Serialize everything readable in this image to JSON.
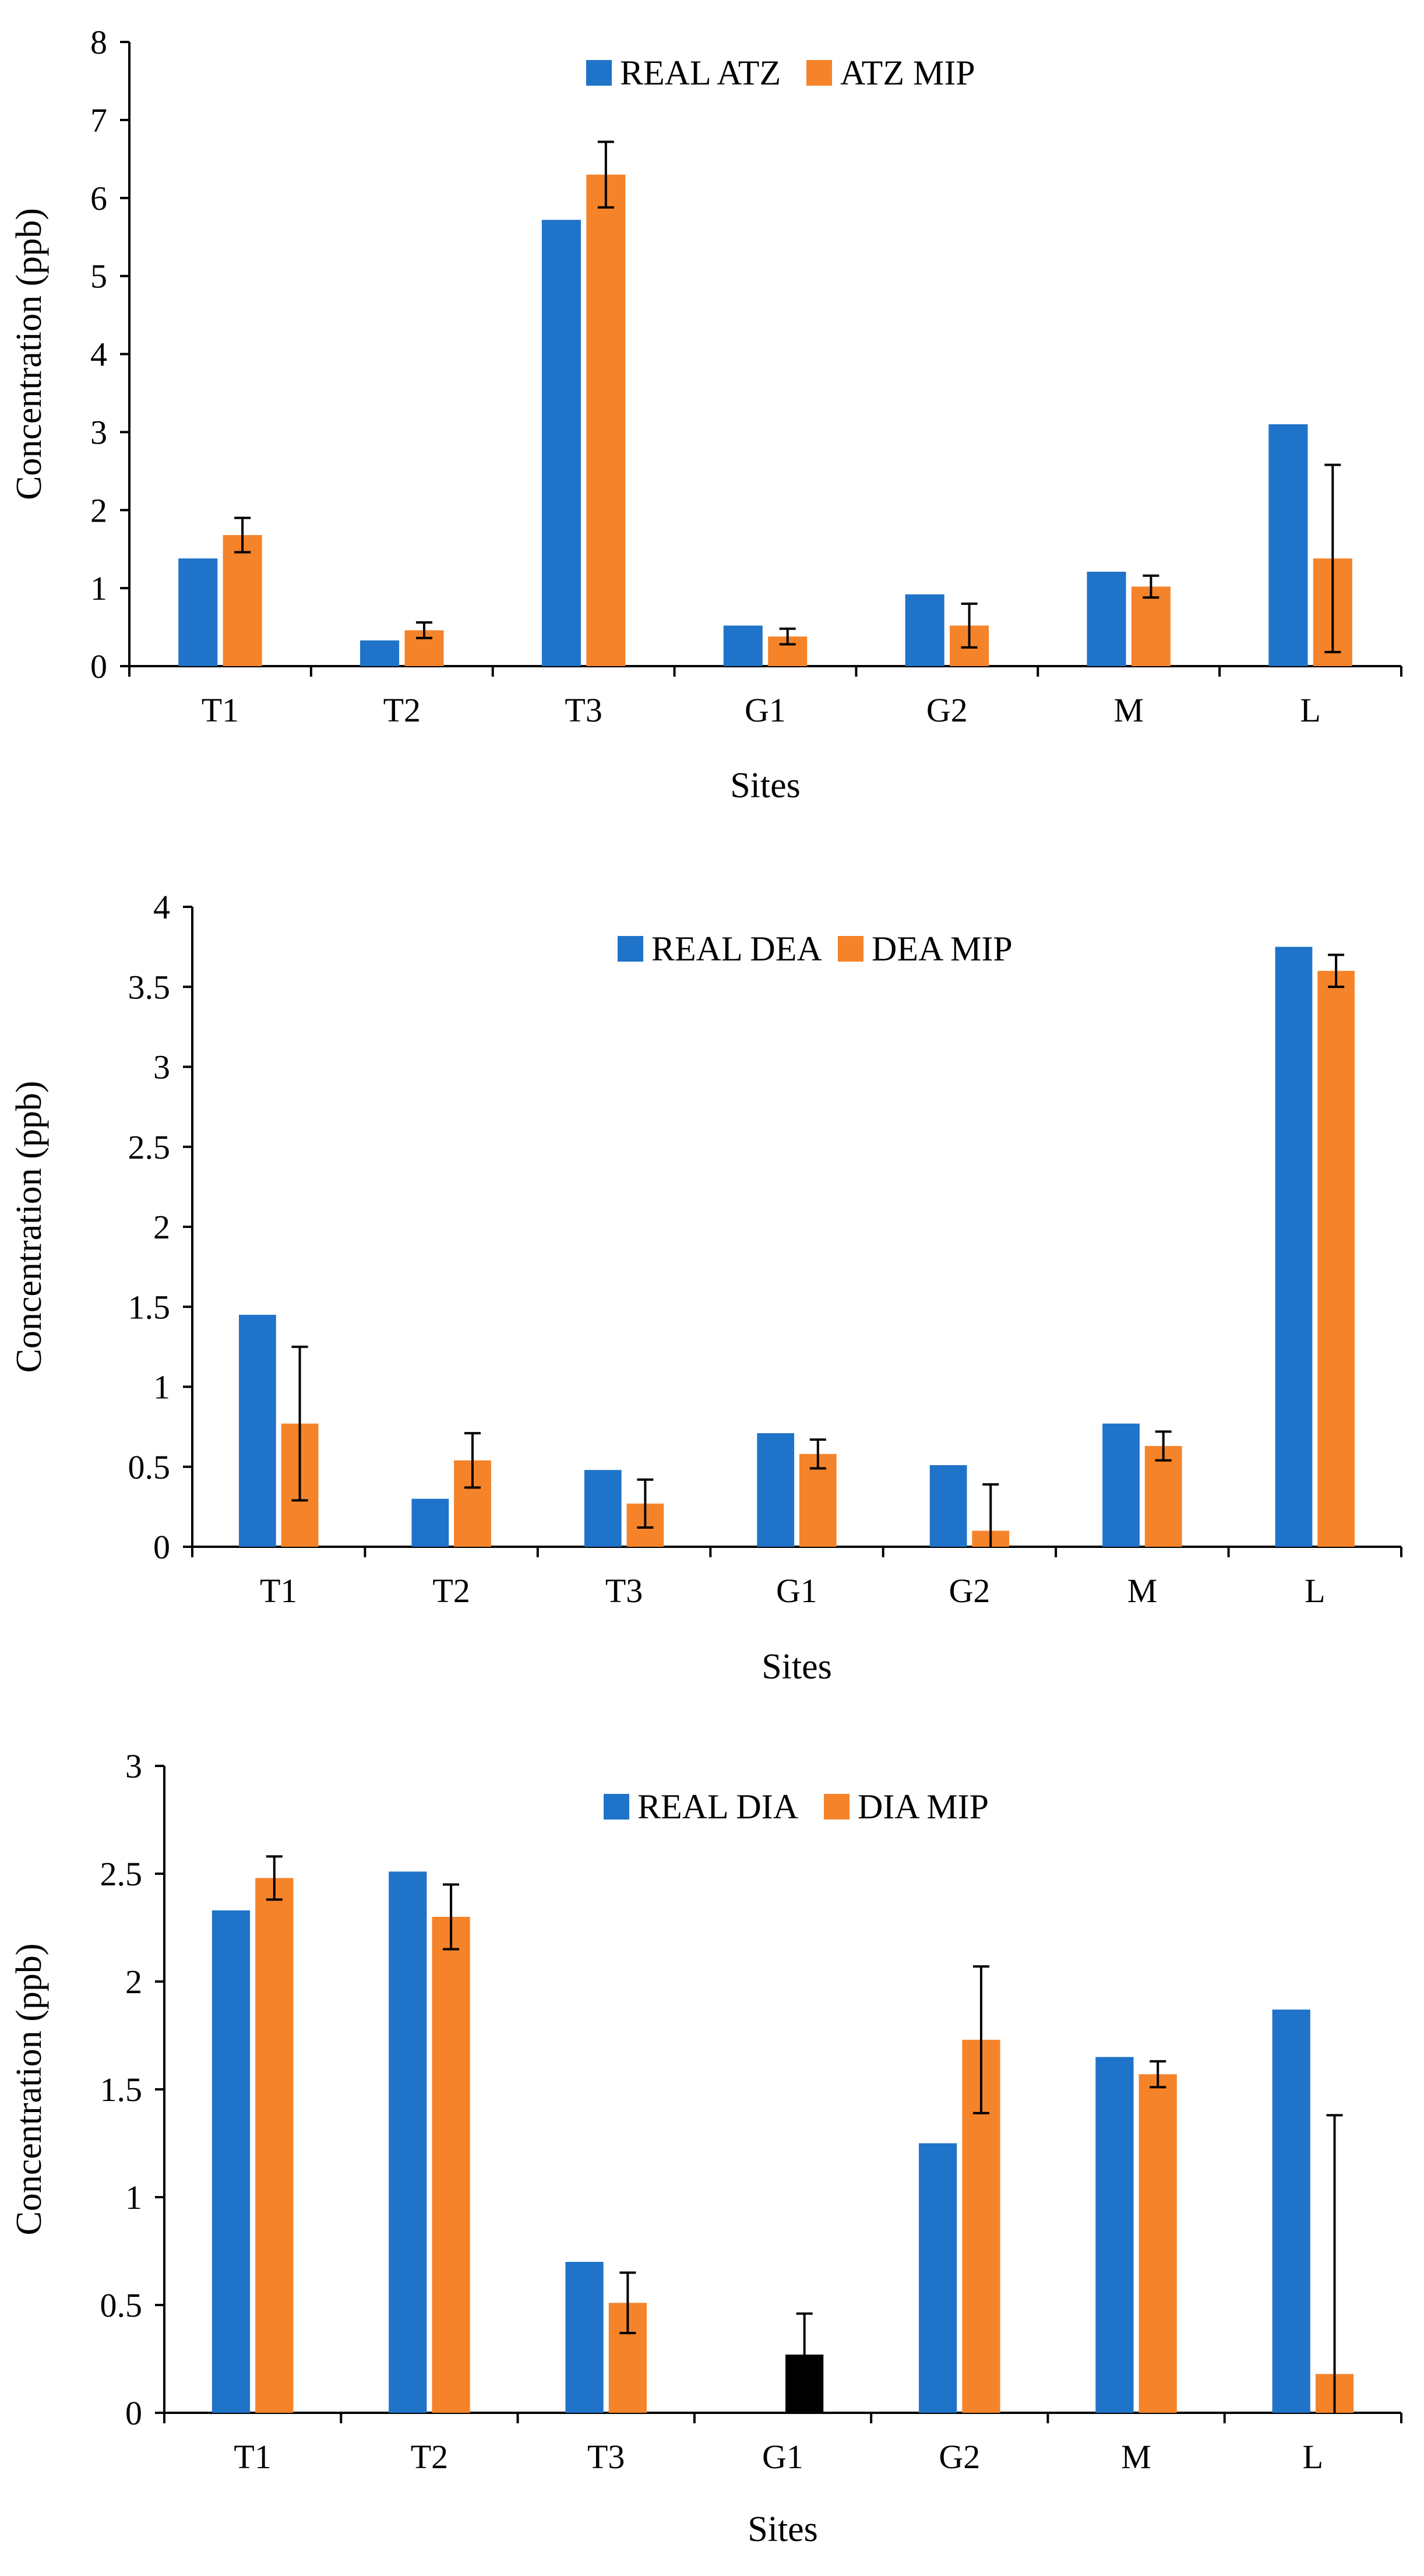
{
  "colors": {
    "real": "#1f73c9",
    "mip": "#f5832a",
    "highlight": "#000000",
    "axis": "#000000"
  },
  "chart_data": [
    {
      "type": "bar",
      "title": "",
      "xlabel": "Sites",
      "ylabel": "Concentration (ppb)",
      "categories": [
        "T1",
        "T2",
        "T3",
        "G1",
        "G2",
        "M",
        "L"
      ],
      "ylim": [
        0,
        8
      ],
      "yticks": [
        0,
        1,
        2,
        3,
        4,
        5,
        6,
        7,
        8
      ],
      "ytick_labels": [
        "0",
        "1",
        "2",
        "3",
        "4",
        "5",
        "6",
        "7",
        "8"
      ],
      "legend_position": "top-center",
      "series": [
        {
          "name": "REAL ATZ",
          "values": [
            1.38,
            0.33,
            5.72,
            0.52,
            0.92,
            1.21,
            3.1
          ],
          "errors": null
        },
        {
          "name": "ATZ MIP",
          "values": [
            1.68,
            0.46,
            6.3,
            0.38,
            0.52,
            1.02,
            1.38
          ],
          "errors": [
            0.22,
            0.1,
            0.42,
            0.1,
            0.28,
            0.14,
            1.2
          ]
        }
      ],
      "highlight_bars": []
    },
    {
      "type": "bar",
      "title": "",
      "xlabel": "Sites",
      "ylabel": "Concentration (ppb)",
      "categories": [
        "T1",
        "T2",
        "T3",
        "G1",
        "G2",
        "M",
        "L"
      ],
      "ylim": [
        0,
        4
      ],
      "yticks": [
        0,
        0.5,
        1,
        1.5,
        2,
        2.5,
        3,
        3.5,
        4
      ],
      "ytick_labels": [
        "0",
        "0.5",
        "1",
        "1.5",
        "2",
        "2.5",
        "3",
        "3.5",
        "4"
      ],
      "legend_position": "top-center",
      "series": [
        {
          "name": "REAL DEA",
          "values": [
            1.45,
            0.3,
            0.48,
            0.71,
            0.51,
            0.77,
            3.75
          ],
          "errors": null
        },
        {
          "name": "DEA MIP",
          "values": [
            0.77,
            0.54,
            0.27,
            0.58,
            0.1,
            0.63,
            3.6
          ],
          "errors": [
            0.48,
            0.17,
            0.15,
            0.09,
            0.29,
            0.09,
            0.1
          ]
        }
      ],
      "highlight_bars": []
    },
    {
      "type": "bar",
      "title": "",
      "xlabel": "Sites",
      "ylabel": "Concentration (ppb)",
      "categories": [
        "T1",
        "T2",
        "T3",
        "G1",
        "G2",
        "M",
        "L"
      ],
      "ylim": [
        0,
        3
      ],
      "yticks": [
        0,
        0.5,
        1,
        1.5,
        2,
        2.5,
        3
      ],
      "ytick_labels": [
        "0",
        "0.5",
        "1",
        "1.5",
        "2",
        "2.5",
        "3"
      ],
      "legend_position": "top-center",
      "series": [
        {
          "name": "REAL DIA",
          "values": [
            2.33,
            2.51,
            0.7,
            0,
            1.25,
            1.65,
            1.87
          ],
          "errors": null
        },
        {
          "name": "DIA MIP",
          "values": [
            2.48,
            2.3,
            0.51,
            0.27,
            1.73,
            1.57,
            0.18
          ],
          "errors": [
            0.1,
            0.15,
            0.14,
            0.19,
            0.34,
            0.06,
            1.2
          ]
        }
      ],
      "highlight_bars": [
        {
          "series": 1,
          "category": 3
        }
      ]
    }
  ]
}
